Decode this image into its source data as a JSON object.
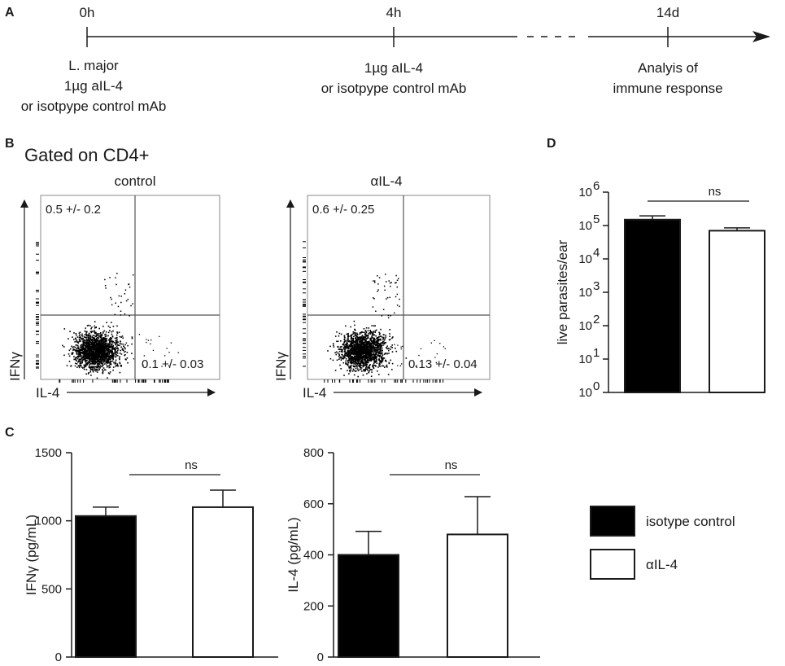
{
  "panels": {
    "a": "A",
    "b": "B",
    "c": "C",
    "d": "D"
  },
  "timeline": {
    "points": [
      {
        "time": "0h",
        "lines": [
          "L. major",
          "1µg aIL-4",
          "or isotpype control mAb"
        ]
      },
      {
        "time": "4h",
        "lines": [
          "1µg aIL-4",
          "or isotpype control mAb"
        ]
      },
      {
        "time": "14d",
        "lines": [
          "Analyis of",
          "immune response"
        ]
      }
    ]
  },
  "flow": {
    "gate_title": "Gated on CD4+",
    "x_label": "IL-4",
    "y_label": "IFNγ",
    "plots": [
      {
        "title": "control",
        "upper_left": "0.5 +/- 0.2",
        "lower_right": "0.1 +/- 0.03"
      },
      {
        "title": "αIL-4",
        "upper_left": "0.6 +/- 0.25",
        "lower_right": "0.13 +/- 0.04"
      }
    ]
  },
  "legend": {
    "items": [
      {
        "label": "isotype control",
        "color": "#000000"
      },
      {
        "label": "αIL-4",
        "color": "#ffffff"
      }
    ]
  },
  "chart_data": [
    {
      "id": "ifng",
      "type": "bar",
      "categories": [
        "isotype control",
        "αIL-4"
      ],
      "values": [
        1035,
        1100
      ],
      "errors": [
        65,
        125
      ],
      "colors": [
        "#000000",
        "#ffffff"
      ],
      "ylabel": "IFNγ (pg/mL)",
      "ylim": [
        0,
        1500
      ],
      "yticks": [
        "0",
        "500",
        "1000",
        "1500"
      ],
      "significance": "ns"
    },
    {
      "id": "il4",
      "type": "bar",
      "categories": [
        "isotype control",
        "αIL-4"
      ],
      "values": [
        400,
        480
      ],
      "errors": [
        92,
        148
      ],
      "colors": [
        "#000000",
        "#ffffff"
      ],
      "ylabel": "IL-4 (pg/mL)",
      "ylim": [
        0,
        800
      ],
      "yticks": [
        "0",
        "200",
        "400",
        "600",
        "800"
      ],
      "significance": "ns"
    },
    {
      "id": "parasites",
      "type": "bar",
      "scale": "log",
      "categories": [
        "isotype control",
        "αIL-4"
      ],
      "values": [
        150000,
        70000
      ],
      "errors": [
        45000,
        15000
      ],
      "colors": [
        "#000000",
        "#ffffff"
      ],
      "ylabel": "live parasites/ear",
      "ylim": [
        1,
        1000000
      ],
      "yticks": [
        "10",
        "10",
        "10",
        "10",
        "10",
        "10",
        "10"
      ],
      "ytick_exponents": [
        "0",
        "1",
        "2",
        "3",
        "4",
        "5",
        "6"
      ],
      "significance": "ns"
    }
  ]
}
